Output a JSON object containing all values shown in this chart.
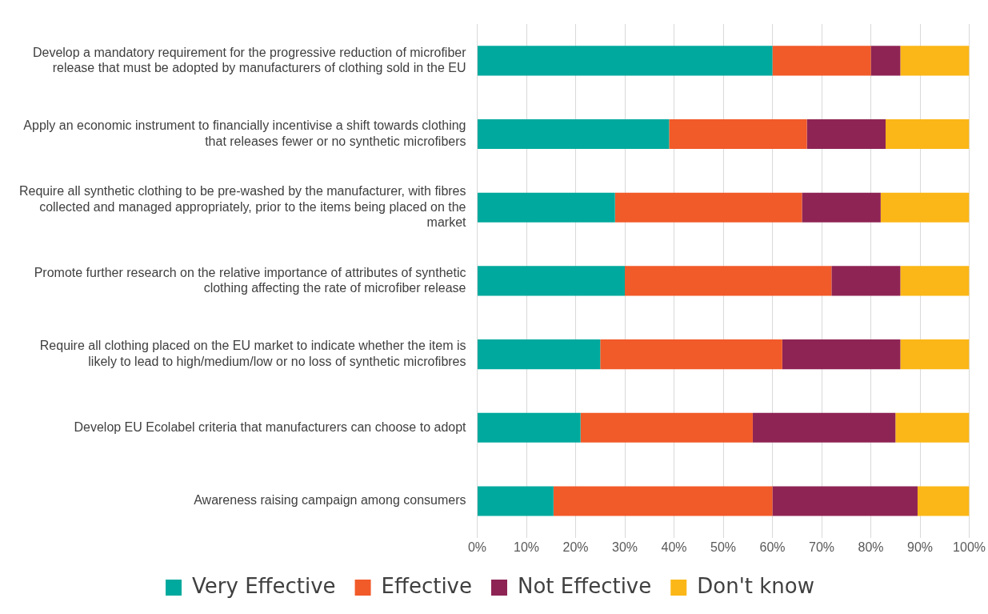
{
  "chart_data": {
    "type": "bar",
    "orientation": "horizontal",
    "stacked": true,
    "categories": [
      "Develop a mandatory requirement for the progressive reduction of microfiber release that must be adopted by manufacturers of clothing sold in the EU",
      "Apply an economic instrument to financially incentivise a shift towards clothing that releases fewer or no synthetic microfibers",
      "Require all synthetic clothing to be pre-washed by the manufacturer, with fibres collected and managed appropriately, prior to the items being placed on the market",
      "Promote further research on the relative importance of attributes of synthetic clothing affecting the rate of microfiber release",
      "Require all clothing placed on the EU market to indicate whether the item is likely to lead to high/medium/low or no loss of synthetic microfibres",
      "Develop EU Ecolabel criteria that manufacturers can choose to adopt",
      "Awareness raising campaign among consumers"
    ],
    "series": [
      {
        "name": "Very Effective",
        "color": "#00a99d",
        "values": [
          60,
          39,
          28,
          30,
          25,
          21,
          15.5
        ]
      },
      {
        "name": "Effective",
        "color": "#f15a29",
        "values": [
          20,
          28,
          38,
          42,
          37,
          35,
          44.5
        ]
      },
      {
        "name": "Not Effective",
        "color": "#8e2454",
        "values": [
          6,
          16,
          16,
          14,
          24,
          29,
          29.5
        ]
      },
      {
        "name": "Don't know",
        "color": "#fbb717",
        "values": [
          14,
          17,
          18,
          14,
          14,
          15,
          10.5
        ]
      }
    ],
    "xlim": [
      0,
      100
    ],
    "xticks": [
      {
        "value": 0,
        "label": "0%"
      },
      {
        "value": 10,
        "label": "10%"
      },
      {
        "value": 20,
        "label": "20%"
      },
      {
        "value": 30,
        "label": "30%"
      },
      {
        "value": 40,
        "label": "40%"
      },
      {
        "value": 50,
        "label": "50%"
      },
      {
        "value": 60,
        "label": "60%"
      },
      {
        "value": 70,
        "label": "70%"
      },
      {
        "value": 80,
        "label": "80%"
      },
      {
        "value": 90,
        "label": "90%"
      },
      {
        "value": 100,
        "label": "100%"
      }
    ],
    "grid": "x",
    "legend": "bottom"
  }
}
